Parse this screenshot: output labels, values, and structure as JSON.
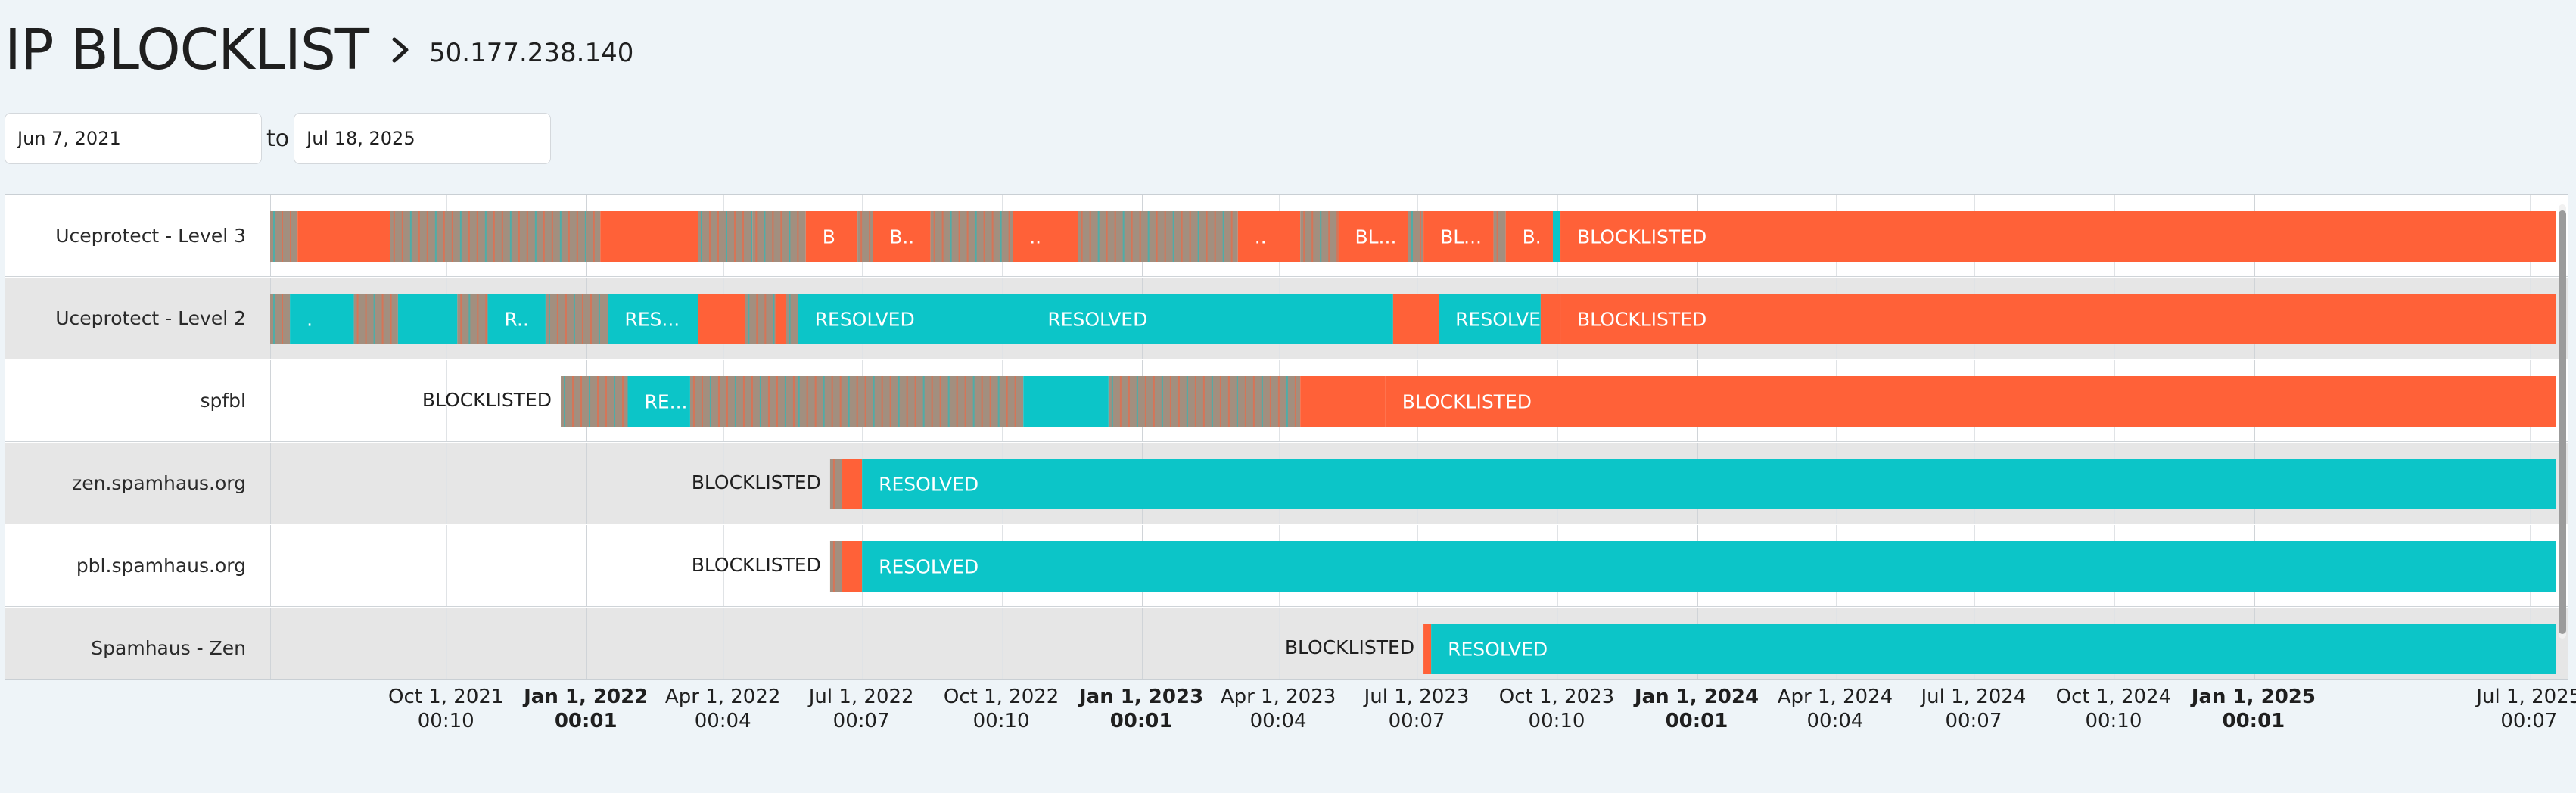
{
  "header": {
    "title": "IP BLOCKLIST",
    "ip_address": "50.177.238.140"
  },
  "date_range": {
    "start": "Jun 7, 2021",
    "separator": "to",
    "end": "Jul 18, 2025"
  },
  "colors": {
    "blocklisted": "#ff6138",
    "resolved": "#0cc5c8",
    "mixed": "#a28f7f",
    "row_alt": "#e6e6e6",
    "row": "#ffffff"
  },
  "timeline": {
    "range_start": "2021-06-07",
    "range_end": "2025-07-18",
    "rows": [
      {
        "name": "Uceprotect - Level 3",
        "outside_label": "",
        "segments": [
          {
            "start": "2021-06-07",
            "end": "2021-06-25",
            "status": "mixed",
            "label": ""
          },
          {
            "start": "2021-06-25",
            "end": "2021-08-25",
            "status": "blocklisted",
            "label": ""
          },
          {
            "start": "2021-08-25",
            "end": "2022-01-10",
            "status": "mixed",
            "label": ""
          },
          {
            "start": "2022-01-10",
            "end": "2022-03-15",
            "status": "blocklisted",
            "label": ""
          },
          {
            "start": "2022-03-15",
            "end": "2022-04-20",
            "status": "mixed",
            "label": ""
          },
          {
            "start": "2022-04-20",
            "end": "2022-05-25",
            "status": "mixed",
            "label": ""
          },
          {
            "start": "2022-05-25",
            "end": "2022-06-28",
            "status": "blocklisted",
            "label": "B"
          },
          {
            "start": "2022-06-28",
            "end": "2022-07-08",
            "status": "mixed",
            "label": ""
          },
          {
            "start": "2022-07-08",
            "end": "2022-08-15",
            "status": "blocklisted",
            "label": "B.."
          },
          {
            "start": "2022-08-15",
            "end": "2022-10-08",
            "status": "mixed",
            "label": ""
          },
          {
            "start": "2022-10-08",
            "end": "2022-11-20",
            "status": "blocklisted",
            "label": ".."
          },
          {
            "start": "2022-11-20",
            "end": "2023-03-05",
            "status": "mixed",
            "label": ""
          },
          {
            "start": "2023-03-05",
            "end": "2023-04-15",
            "status": "blocklisted",
            "label": ".."
          },
          {
            "start": "2023-04-15",
            "end": "2023-05-10",
            "status": "mixed",
            "label": ""
          },
          {
            "start": "2023-05-10",
            "end": "2023-06-25",
            "status": "blocklisted",
            "label": "BL..."
          },
          {
            "start": "2023-06-25",
            "end": "2023-07-05",
            "status": "mixed",
            "label": ""
          },
          {
            "start": "2023-07-05",
            "end": "2023-08-20",
            "status": "blocklisted",
            "label": "BL..."
          },
          {
            "start": "2023-08-20",
            "end": "2023-08-28",
            "status": "mixed",
            "label": ""
          },
          {
            "start": "2023-08-28",
            "end": "2023-09-28",
            "status": "blocklisted",
            "label": "B."
          },
          {
            "start": "2023-09-28",
            "end": "2023-10-03",
            "status": "resolved",
            "label": ""
          },
          {
            "start": "2023-10-03",
            "end": "2025-07-18",
            "status": "blocklisted",
            "label": "BLOCKLISTED"
          }
        ]
      },
      {
        "name": "Uceprotect - Level 2",
        "outside_label": "",
        "segments": [
          {
            "start": "2021-06-07",
            "end": "2021-06-20",
            "status": "mixed",
            "label": ""
          },
          {
            "start": "2021-06-20",
            "end": "2021-08-01",
            "status": "resolved",
            "label": "."
          },
          {
            "start": "2021-08-01",
            "end": "2021-08-30",
            "status": "mixed",
            "label": ""
          },
          {
            "start": "2021-08-30",
            "end": "2021-10-08",
            "status": "resolved",
            "label": ""
          },
          {
            "start": "2021-10-08",
            "end": "2021-10-28",
            "status": "mixed",
            "label": ""
          },
          {
            "start": "2021-10-28",
            "end": "2021-12-05",
            "status": "resolved",
            "label": "R.."
          },
          {
            "start": "2021-12-05",
            "end": "2022-01-15",
            "status": "mixed",
            "label": ""
          },
          {
            "start": "2022-01-15",
            "end": "2022-03-15",
            "status": "resolved",
            "label": "RES..."
          },
          {
            "start": "2022-03-15",
            "end": "2022-04-15",
            "status": "blocklisted",
            "label": ""
          },
          {
            "start": "2022-04-15",
            "end": "2022-05-05",
            "status": "mixed",
            "label": ""
          },
          {
            "start": "2022-05-05",
            "end": "2022-05-12",
            "status": "blocklisted",
            "label": ""
          },
          {
            "start": "2022-05-12",
            "end": "2022-05-20",
            "status": "mixed",
            "label": ""
          },
          {
            "start": "2022-05-20",
            "end": "2022-10-20",
            "status": "resolved",
            "label": "RESOLVED"
          },
          {
            "start": "2022-10-20",
            "end": "2023-06-15",
            "status": "resolved",
            "label": "RESOLVED"
          },
          {
            "start": "2023-06-15",
            "end": "2023-07-15",
            "status": "blocklisted",
            "label": ""
          },
          {
            "start": "2023-07-15",
            "end": "2023-09-20",
            "status": "resolved",
            "label": "RESOLVED"
          },
          {
            "start": "2023-09-20",
            "end": "2023-10-03",
            "status": "blocklisted",
            "label": ""
          },
          {
            "start": "2023-10-03",
            "end": "2025-07-18",
            "status": "blocklisted",
            "label": "BLOCKLISTED"
          }
        ]
      },
      {
        "name": "spfbl",
        "outside_label": "BLOCKLISTED",
        "segments": [
          {
            "start": "2021-12-15",
            "end": "2022-01-28",
            "status": "mixed",
            "label": ""
          },
          {
            "start": "2022-01-28",
            "end": "2022-03-10",
            "status": "resolved",
            "label": "RE..."
          },
          {
            "start": "2022-03-10",
            "end": "2022-05-18",
            "status": "mixed",
            "label": ""
          },
          {
            "start": "2022-05-18",
            "end": "2022-10-15",
            "status": "mixed",
            "label": ""
          },
          {
            "start": "2022-10-15",
            "end": "2022-12-10",
            "status": "resolved",
            "label": ""
          },
          {
            "start": "2022-12-10",
            "end": "2023-04-15",
            "status": "mixed",
            "label": ""
          },
          {
            "start": "2023-04-15",
            "end": "2023-06-10",
            "status": "blocklisted",
            "label": ""
          },
          {
            "start": "2023-06-10",
            "end": "2025-07-18",
            "status": "blocklisted",
            "label": "BLOCKLISTED"
          }
        ]
      },
      {
        "name": "zen.spamhaus.org",
        "outside_label": "BLOCKLISTED",
        "segments": [
          {
            "start": "2022-06-10",
            "end": "2022-06-18",
            "status": "mixed",
            "label": ""
          },
          {
            "start": "2022-06-18",
            "end": "2022-07-01",
            "status": "blocklisted",
            "label": ""
          },
          {
            "start": "2022-07-01",
            "end": "2025-07-18",
            "status": "resolved",
            "label": "RESOLVED"
          }
        ]
      },
      {
        "name": "pbl.spamhaus.org",
        "outside_label": "BLOCKLISTED",
        "segments": [
          {
            "start": "2022-06-10",
            "end": "2022-06-18",
            "status": "mixed",
            "label": ""
          },
          {
            "start": "2022-06-18",
            "end": "2022-07-01",
            "status": "blocklisted",
            "label": ""
          },
          {
            "start": "2022-07-01",
            "end": "2025-07-18",
            "status": "resolved",
            "label": "RESOLVED"
          }
        ]
      },
      {
        "name": "Spamhaus - Zen",
        "outside_label": "BLOCKLISTED",
        "segments": [
          {
            "start": "2023-07-05",
            "end": "2023-07-10",
            "status": "blocklisted",
            "label": ""
          },
          {
            "start": "2023-07-10",
            "end": "2025-07-18",
            "status": "resolved",
            "label": "RESOLVED"
          }
        ]
      }
    ]
  },
  "axis": {
    "ticks": [
      {
        "date": "2021-10-01",
        "label": "Oct 1, 2021",
        "time": "00:10",
        "bold": false
      },
      {
        "date": "2022-01-01",
        "label": "Jan 1, 2022",
        "time": "00:01",
        "bold": true
      },
      {
        "date": "2022-04-01",
        "label": "Apr 1, 2022",
        "time": "00:04",
        "bold": false
      },
      {
        "date": "2022-07-01",
        "label": "Jul 1, 2022",
        "time": "00:07",
        "bold": false
      },
      {
        "date": "2022-10-01",
        "label": "Oct 1, 2022",
        "time": "00:10",
        "bold": false
      },
      {
        "date": "2023-01-01",
        "label": "Jan 1, 2023",
        "time": "00:01",
        "bold": true
      },
      {
        "date": "2023-04-01",
        "label": "Apr 1, 2023",
        "time": "00:04",
        "bold": false
      },
      {
        "date": "2023-07-01",
        "label": "Jul 1, 2023",
        "time": "00:07",
        "bold": false
      },
      {
        "date": "2023-10-01",
        "label": "Oct 1, 2023",
        "time": "00:10",
        "bold": false
      },
      {
        "date": "2024-01-01",
        "label": "Jan 1, 2024",
        "time": "00:01",
        "bold": true
      },
      {
        "date": "2024-04-01",
        "label": "Apr 1, 2024",
        "time": "00:04",
        "bold": false
      },
      {
        "date": "2024-07-01",
        "label": "Jul 1, 2024",
        "time": "00:07",
        "bold": false
      },
      {
        "date": "2024-10-01",
        "label": "Oct 1, 2024",
        "time": "00:10",
        "bold": false
      },
      {
        "date": "2025-01-01",
        "label": "Jan 1, 2025",
        "time": "00:01",
        "bold": true
      },
      {
        "date": "2025-07-01",
        "label": "Jul 1, 2025",
        "time": "00:07",
        "bold": false
      }
    ]
  }
}
